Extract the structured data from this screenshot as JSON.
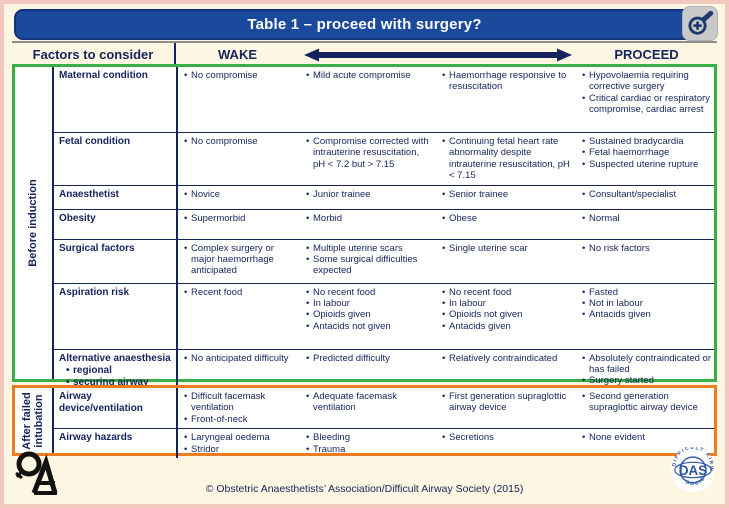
{
  "title": "Table 1 – proceed with surgery?",
  "header": {
    "factors": "Factors to consider",
    "wake": "WAKE",
    "proceed": "PROCEED"
  },
  "icons": {
    "title_button": "zoom-in-magnifier-plus",
    "header_arrow": "double-headed-arrow",
    "left_logo": "oaa-monogram",
    "right_logo": "das-emblem"
  },
  "colors": {
    "title_bar_blue": "#1b4a9c",
    "text_navy": "#16245c",
    "before_induction_green": "#3aae49",
    "after_failed_orange": "#ed7d21",
    "page_cream": "#fdf6e3",
    "outer_border_pink": "#f3c9bf",
    "table_white": "#ffffff"
  },
  "sections": [
    {
      "label": "Before induction",
      "border_color": "#3aae49",
      "rows": [
        {
          "label": "Maternal condition",
          "cells": [
            [
              "No compromise"
            ],
            [
              "Mild acute compromise"
            ],
            [
              "Haemorrhage responsive to resuscitation"
            ],
            [
              "Hypovolaemia requiring corrective surgery",
              "Critical cardiac or respiratory compromise, cardiac arrest"
            ]
          ]
        },
        {
          "label": "Fetal condition",
          "cells": [
            [
              "No compromise"
            ],
            [
              "Compromise corrected with intrauterine resuscitation, pH < 7.2 but > 7.15"
            ],
            [
              "Continuing fetal heart rate abnormality despite intrauterine resuscitation, pH < 7.15"
            ],
            [
              "Sustained bradycardia",
              "Fetal haemorrhage",
              "Suspected uterine rupture"
            ]
          ]
        },
        {
          "label": "Anaesthetist",
          "cells": [
            [
              "Novice"
            ],
            [
              "Junior trainee"
            ],
            [
              "Senior trainee"
            ],
            [
              "Consultant/specialist"
            ]
          ]
        },
        {
          "label": "Obesity",
          "cells": [
            [
              "Supermorbid"
            ],
            [
              "Morbid"
            ],
            [
              "Obese"
            ],
            [
              "Normal"
            ]
          ]
        },
        {
          "label": "Surgical factors",
          "cells": [
            [
              "Complex surgery or major haemorrhage anticipated"
            ],
            [
              "Multiple uterine scars",
              "Some surgical difficulties expected"
            ],
            [
              "Single uterine scar"
            ],
            [
              "No risk factors"
            ]
          ]
        },
        {
          "label": "Aspiration risk",
          "cells": [
            [
              "Recent food"
            ],
            [
              "No recent food",
              "In labour",
              "Opioids given",
              "Antacids not given"
            ],
            [
              "No recent food",
              "In labour",
              "Opioids not given",
              "Antacids given"
            ],
            [
              "Fasted",
              "Not in labour",
              "Antacids given"
            ]
          ]
        },
        {
          "label": "Alternative anaesthesia",
          "sublabels": [
            "regional",
            "securing airway awake"
          ],
          "cells": [
            [
              "No anticipated difficulty"
            ],
            [
              "Predicted difficulty"
            ],
            [
              "Relatively contraindicated"
            ],
            [
              "Absolutely contraindicated or has failed",
              "Surgery started"
            ]
          ]
        }
      ]
    },
    {
      "label": "After failed intubation",
      "border_color": "#ed7d21",
      "rows": [
        {
          "label": "Airway device/ventilation",
          "cells": [
            [
              "Difficult facemask ventilation",
              "Front-of-neck"
            ],
            [
              "Adequate facemask ventilation"
            ],
            [
              "First generation supraglottic airway device"
            ],
            [
              "Second generation supraglottic airway device"
            ]
          ]
        },
        {
          "label": "Airway hazards",
          "cells": [
            [
              "Laryngeal oedema",
              "Stridor"
            ],
            [
              "Bleeding",
              "Trauma"
            ],
            [
              "Secretions"
            ],
            [
              "None evident"
            ]
          ]
        }
      ]
    }
  ],
  "footer": {
    "copyright": "© Obstetric Anaesthetists’ Association/Difficult Airway Society (2015)",
    "das_label": "DAS",
    "das_text_top": "DIFFICULT AIRWAY",
    "das_text_bottom": "SOCIETY"
  }
}
